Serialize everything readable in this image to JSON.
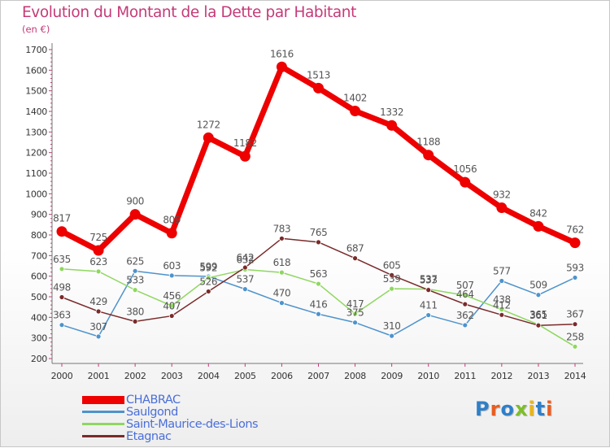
{
  "title": "Evolution du Montant de la Dette par Habitant",
  "unit": "(en €)",
  "logo": {
    "text": "Proxiti",
    "colors": [
      "#2f7fc8",
      "#e85d21",
      "#2f7fc8",
      "#7cbf27",
      "#e8b51a",
      "#2f7fc8",
      "#e85d21"
    ]
  },
  "colors": {
    "title": "#c53a78",
    "axis": "#777777",
    "grid_tick": "#c53a78",
    "label": "#555555"
  },
  "chart_data": {
    "type": "line",
    "title": "Evolution du Montant de la Dette par Habitant",
    "ylabel": "(en €)",
    "x": [
      "2000",
      "2001",
      "2002",
      "2003",
      "2004",
      "2005",
      "2006",
      "2007",
      "2008",
      "2009",
      "2010",
      "2011",
      "2012",
      "2013",
      "2014"
    ],
    "ylim": [
      200,
      1700
    ],
    "yticks": [
      "200",
      "300",
      "400",
      "500",
      "600",
      "700",
      "800",
      "900",
      "1000",
      "1100",
      "1200",
      "1300",
      "1400",
      "1500",
      "1600",
      "1700"
    ],
    "grid": false,
    "legend_position": "bottom-left",
    "series": [
      {
        "name": "CHABRAC",
        "color": "#ee0000",
        "legend_text_color": "#4a6fd8",
        "values": [
          817,
          725,
          900,
          809,
          1272,
          1182,
          1616,
          1513,
          1402,
          1332,
          1188,
          1056,
          932,
          842,
          762
        ],
        "labels": [
          "817",
          "725",
          "900",
          "809",
          "1272",
          "1182",
          "1616",
          "1513",
          "1402",
          "1332",
          "1188",
          "1056",
          "932",
          "842",
          "762"
        ]
      },
      {
        "name": "Saulgond",
        "color": "#4e93cc",
        "legend_text_color": "#4a6fd8",
        "values": [
          363,
          307,
          625,
          603,
          599,
          537,
          470,
          416,
          375,
          310,
          411,
          362,
          577,
          509,
          593
        ],
        "labels": [
          "363",
          "307",
          "625",
          "603",
          "599",
          "537",
          "470",
          "416",
          "375",
          "310",
          "411",
          "362",
          "577",
          "509",
          "593"
        ]
      },
      {
        "name": "Saint-Maurice-des-Lions",
        "color": "#8fd760",
        "legend_text_color": "#4a6fd8",
        "values": [
          635,
          623,
          533,
          456,
          592,
          632,
          618,
          563,
          417,
          539,
          537,
          507,
          438,
          365,
          258
        ],
        "labels": [
          "635",
          "623",
          "533",
          "456",
          "592",
          "632",
          "618",
          "563",
          "417",
          "539",
          "537",
          "507",
          "438",
          "365",
          "258"
        ]
      },
      {
        "name": "Etagnac",
        "color": "#7a2a2a",
        "legend_text_color": "#4a6fd8",
        "values": [
          498,
          429,
          380,
          407,
          526,
          642,
          783,
          765,
          687,
          605,
          533,
          464,
          412,
          361,
          367
        ],
        "labels": [
          "498",
          "429",
          "380",
          "407",
          "526",
          "642",
          "783",
          "765",
          "687",
          "605",
          "533",
          "464",
          "412",
          "361",
          "367"
        ]
      }
    ]
  }
}
